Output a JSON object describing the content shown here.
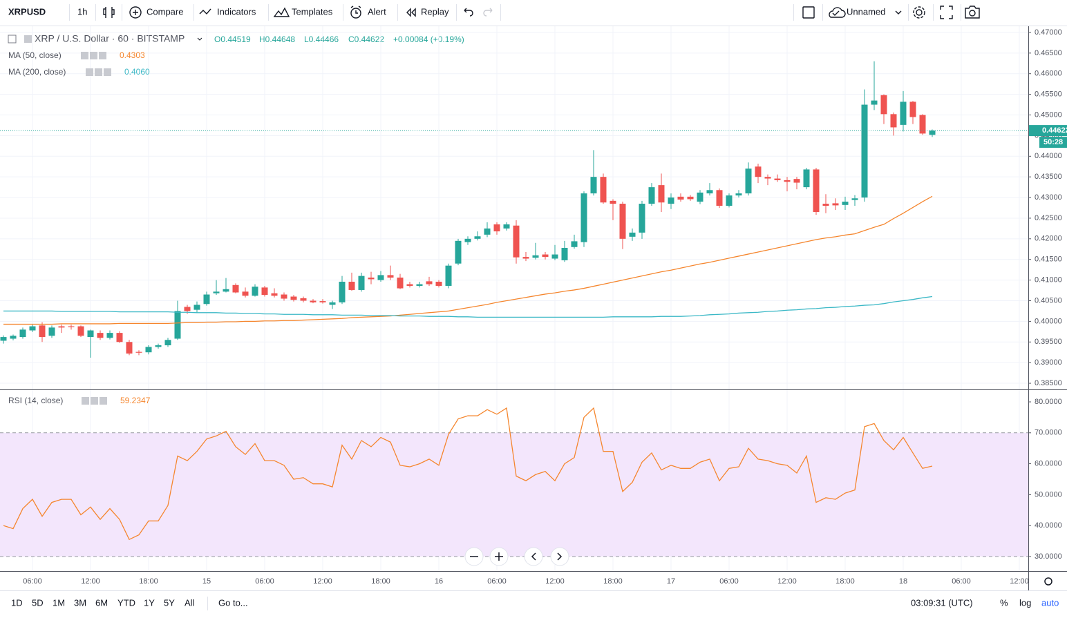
{
  "toolbar": {
    "symbol": "XRPUSD",
    "interval": "1h",
    "buttons": [
      "Compare",
      "Indicators",
      "Templates",
      "Alert",
      "Replay"
    ],
    "layout": "Unnamed"
  },
  "header": {
    "title": "XRP / U.S. Dollar · 60 · BITSTAMP",
    "ohlc": [
      "O0.44519",
      "H0.44648",
      "L0.44466",
      "C0.44622"
    ],
    "change": "+0.00084 (+0.19%)"
  },
  "chart_data": [
    {
      "type": "candlestick",
      "up_color": "#26a69a",
      "down_color": "#ef5350",
      "candles": [
        [
          0.3953,
          0.3966,
          0.3946,
          0.3962
        ],
        [
          0.3958,
          0.3968,
          0.3954,
          0.3965
        ],
        [
          0.3962,
          0.3985,
          0.3958,
          0.398
        ],
        [
          0.3978,
          0.3992,
          0.3974,
          0.3988
        ],
        [
          0.399,
          0.3998,
          0.395,
          0.3962
        ],
        [
          0.3965,
          0.399,
          0.396,
          0.3985
        ],
        [
          0.3988,
          0.3992,
          0.3972,
          0.3985
        ],
        [
          0.3988,
          0.3992,
          0.398,
          0.3986
        ],
        [
          0.3988,
          0.399,
          0.3962,
          0.3965
        ],
        [
          0.3962,
          0.398,
          0.3912,
          0.3978
        ],
        [
          0.3972,
          0.3978,
          0.3955,
          0.396
        ],
        [
          0.396,
          0.3978,
          0.3956,
          0.3972
        ],
        [
          0.3972,
          0.3976,
          0.3948,
          0.395
        ],
        [
          0.395,
          0.3955,
          0.3918,
          0.3922
        ],
        [
          0.3926,
          0.393,
          0.3918,
          0.3924
        ],
        [
          0.3925,
          0.3942,
          0.392,
          0.3938
        ],
        [
          0.3938,
          0.3946,
          0.3934,
          0.3942
        ],
        [
          0.3942,
          0.396,
          0.3938,
          0.3955
        ],
        [
          0.3958,
          0.405,
          0.3955,
          0.4025
        ],
        [
          0.4035,
          0.404,
          0.4018,
          0.4025
        ],
        [
          0.4028,
          0.4048,
          0.402,
          0.404
        ],
        [
          0.4042,
          0.4072,
          0.4038,
          0.4065
        ],
        [
          0.4068,
          0.41,
          0.4064,
          0.4072
        ],
        [
          0.4072,
          0.4105,
          0.407,
          0.4078
        ],
        [
          0.4088,
          0.4092,
          0.4068,
          0.407
        ],
        [
          0.4072,
          0.4082,
          0.4058,
          0.4062
        ],
        [
          0.4062,
          0.409,
          0.406,
          0.4084
        ],
        [
          0.4082,
          0.4086,
          0.406,
          0.4064
        ],
        [
          0.4068,
          0.408,
          0.4058,
          0.4062
        ],
        [
          0.4065,
          0.407,
          0.405,
          0.4055
        ],
        [
          0.406,
          0.4064,
          0.4048,
          0.4052
        ],
        [
          0.4056,
          0.406,
          0.4046,
          0.405
        ],
        [
          0.405,
          0.4054,
          0.4044,
          0.4046
        ],
        [
          0.4049,
          0.4054,
          0.4043,
          0.4046
        ],
        [
          0.404,
          0.405,
          0.403,
          0.4046
        ],
        [
          0.4046,
          0.411,
          0.4042,
          0.4096
        ],
        [
          0.4096,
          0.4118,
          0.4074,
          0.4076
        ],
        [
          0.4076,
          0.4118,
          0.4072,
          0.411
        ],
        [
          0.4106,
          0.412,
          0.409,
          0.4102
        ],
        [
          0.41,
          0.4122,
          0.4096,
          0.4112
        ],
        [
          0.4112,
          0.4135,
          0.41,
          0.4106
        ],
        [
          0.4106,
          0.4115,
          0.4078,
          0.408
        ],
        [
          0.409,
          0.4096,
          0.4082,
          0.4086
        ],
        [
          0.4086,
          0.4096,
          0.4082,
          0.409
        ],
        [
          0.4097,
          0.4108,
          0.4086,
          0.409
        ],
        [
          0.4096,
          0.41,
          0.4082,
          0.4086
        ],
        [
          0.4086,
          0.414,
          0.408,
          0.4135
        ],
        [
          0.414,
          0.42,
          0.4136,
          0.4195
        ],
        [
          0.4192,
          0.4206,
          0.4185,
          0.42
        ],
        [
          0.42,
          0.4218,
          0.4196,
          0.4206
        ],
        [
          0.421,
          0.424,
          0.4204,
          0.4225
        ],
        [
          0.4235,
          0.424,
          0.421,
          0.4218
        ],
        [
          0.4225,
          0.424,
          0.422,
          0.4235
        ],
        [
          0.4232,
          0.4245,
          0.414,
          0.4155
        ],
        [
          0.4156,
          0.4168,
          0.4146,
          0.4152
        ],
        [
          0.4154,
          0.419,
          0.415,
          0.416
        ],
        [
          0.4162,
          0.4168,
          0.415,
          0.4156
        ],
        [
          0.4152,
          0.4185,
          0.4148,
          0.4162
        ],
        [
          0.4148,
          0.4195,
          0.4144,
          0.4178
        ],
        [
          0.418,
          0.421,
          0.4176,
          0.4194
        ],
        [
          0.4192,
          0.4315,
          0.418,
          0.431
        ],
        [
          0.431,
          0.4415,
          0.4305,
          0.435
        ],
        [
          0.435,
          0.4358,
          0.4285,
          0.4288
        ],
        [
          0.4292,
          0.4296,
          0.4245,
          0.4285
        ],
        [
          0.4285,
          0.429,
          0.4175,
          0.42
        ],
        [
          0.4205,
          0.4225,
          0.4195,
          0.4215
        ],
        [
          0.4215,
          0.4292,
          0.42,
          0.4285
        ],
        [
          0.4285,
          0.4335,
          0.428,
          0.4325
        ],
        [
          0.433,
          0.4358,
          0.4265,
          0.4288
        ],
        [
          0.4285,
          0.431,
          0.4272,
          0.43
        ],
        [
          0.4302,
          0.431,
          0.429,
          0.4295
        ],
        [
          0.4302,
          0.4306,
          0.4292,
          0.4296
        ],
        [
          0.429,
          0.4318,
          0.4284,
          0.4312
        ],
        [
          0.431,
          0.4335,
          0.4305,
          0.4318
        ],
        [
          0.4318,
          0.4322,
          0.4275,
          0.428
        ],
        [
          0.428,
          0.431,
          0.4276,
          0.4305
        ],
        [
          0.4305,
          0.4318,
          0.43,
          0.431
        ],
        [
          0.431,
          0.4385,
          0.4305,
          0.437
        ],
        [
          0.4375,
          0.4382,
          0.4335,
          0.435
        ],
        [
          0.435,
          0.4356,
          0.433,
          0.4346
        ],
        [
          0.4346,
          0.4356,
          0.4338,
          0.4342
        ],
        [
          0.4342,
          0.435,
          0.4315,
          0.4338
        ],
        [
          0.4345,
          0.435,
          0.432,
          0.4336
        ],
        [
          0.4325,
          0.4372,
          0.432,
          0.4368
        ],
        [
          0.4368,
          0.4372,
          0.4258,
          0.4265
        ],
        [
          0.4285,
          0.4308,
          0.4262,
          0.428
        ],
        [
          0.4286,
          0.4298,
          0.427,
          0.4281
        ],
        [
          0.4282,
          0.4302,
          0.427,
          0.429
        ],
        [
          0.4294,
          0.4306,
          0.428,
          0.4298
        ],
        [
          0.43,
          0.4562,
          0.429,
          0.4525
        ],
        [
          0.4525,
          0.463,
          0.4512,
          0.4535
        ],
        [
          0.4548,
          0.455,
          0.4478,
          0.4502
        ],
        [
          0.4502,
          0.4506,
          0.445,
          0.447
        ],
        [
          0.4476,
          0.4558,
          0.446,
          0.4532
        ],
        [
          0.4532,
          0.4534,
          0.4478,
          0.4495
        ],
        [
          0.45,
          0.4502,
          0.4452,
          0.4455
        ],
        [
          0.44519,
          0.44648,
          0.44466,
          0.44622
        ]
      ],
      "series": [
        {
          "name": "MA (50, close)",
          "color": "#f5862e",
          "last_label": "0.4303",
          "values": [
            0.3993,
            0.3993,
            0.3993,
            0.3993,
            0.3993,
            0.3993,
            0.3994,
            0.3994,
            0.3994,
            0.3994,
            0.3994,
            0.3994,
            0.3995,
            0.3995,
            0.3995,
            0.3995,
            0.3995,
            0.3995,
            0.3996,
            0.3997,
            0.3997,
            0.3998,
            0.3998,
            0.3999,
            0.3999,
            0.4,
            0.4,
            0.4001,
            0.4001,
            0.4002,
            0.4002,
            0.4003,
            0.4004,
            0.4005,
            0.4006,
            0.4007,
            0.4009,
            0.401,
            0.4011,
            0.4012,
            0.4013,
            0.4015,
            0.4017,
            0.4019,
            0.4021,
            0.4023,
            0.4025,
            0.4029,
            0.4033,
            0.4037,
            0.4041,
            0.4046,
            0.405,
            0.4054,
            0.4058,
            0.4062,
            0.4066,
            0.4069,
            0.4073,
            0.4076,
            0.408,
            0.4085,
            0.409,
            0.4095,
            0.41,
            0.4105,
            0.411,
            0.4115,
            0.412,
            0.4124,
            0.4129,
            0.4134,
            0.4139,
            0.4143,
            0.4148,
            0.4153,
            0.4158,
            0.4163,
            0.4168,
            0.4173,
            0.4178,
            0.4183,
            0.4188,
            0.4193,
            0.4198,
            0.4202,
            0.4205,
            0.4209,
            0.4212,
            0.422,
            0.4228,
            0.4235,
            0.4249,
            0.4262,
            0.4276,
            0.429,
            0.4303
          ]
        },
        {
          "name": "MA (200, close)",
          "color": "#3bb8c6",
          "last_label": "0.4060",
          "values": [
            0.4025,
            0.4025,
            0.4025,
            0.4025,
            0.4025,
            0.4025,
            0.4024,
            0.4024,
            0.4024,
            0.4024,
            0.4024,
            0.4024,
            0.4023,
            0.4023,
            0.4023,
            0.4023,
            0.4023,
            0.4023,
            0.4022,
            0.4022,
            0.4021,
            0.4021,
            0.4021,
            0.402,
            0.402,
            0.4019,
            0.4019,
            0.4018,
            0.4018,
            0.4017,
            0.4017,
            0.4017,
            0.4016,
            0.4016,
            0.4016,
            0.4015,
            0.4015,
            0.4015,
            0.4014,
            0.4014,
            0.4014,
            0.4013,
            0.4013,
            0.4013,
            0.4012,
            0.4012,
            0.4012,
            0.4011,
            0.4011,
            0.401,
            0.401,
            0.401,
            0.401,
            0.401,
            0.401,
            0.401,
            0.401,
            0.401,
            0.401,
            0.401,
            0.401,
            0.401,
            0.401,
            0.4011,
            0.4011,
            0.4011,
            0.4011,
            0.4011,
            0.4012,
            0.4012,
            0.4012,
            0.4013,
            0.4014,
            0.4016,
            0.4017,
            0.4018,
            0.402,
            0.4021,
            0.4022,
            0.4024,
            0.4025,
            0.4027,
            0.4028,
            0.403,
            0.4031,
            0.4033,
            0.4034,
            0.4036,
            0.4037,
            0.4039,
            0.404,
            0.4043,
            0.4047,
            0.405,
            0.4053,
            0.4057,
            0.406
          ]
        }
      ],
      "ylim": [
        0.3835,
        0.4715
      ],
      "yticks": [
        {
          "value": 0.385,
          "label": "0.38500"
        },
        {
          "value": 0.39,
          "label": "0.39000"
        },
        {
          "value": 0.395,
          "label": "0.39500"
        },
        {
          "value": 0.4,
          "label": "0.40000"
        },
        {
          "value": 0.405,
          "label": "0.40500"
        },
        {
          "value": 0.41,
          "label": "0.41000"
        },
        {
          "value": 0.415,
          "label": "0.41500"
        },
        {
          "value": 0.42,
          "label": "0.42000"
        },
        {
          "value": 0.425,
          "label": "0.42500"
        },
        {
          "value": 0.43,
          "label": "0.43000"
        },
        {
          "value": 0.435,
          "label": "0.43500"
        },
        {
          "value": 0.44,
          "label": "0.44000"
        },
        {
          "value": 0.445,
          "label": "0.44500"
        },
        {
          "value": 0.45,
          "label": "0.45000"
        },
        {
          "value": 0.455,
          "label": "0.45500"
        },
        {
          "value": 0.46,
          "label": "0.46000"
        },
        {
          "value": 0.465,
          "label": "0.46500"
        },
        {
          "value": 0.47,
          "label": "0.47000"
        }
      ],
      "xtick_labels": [
        "06:00",
        "12:00",
        "18:00",
        "15",
        "06:00",
        "12:00",
        "18:00",
        "16",
        "06:00",
        "12:00",
        "18:00",
        "17",
        "06:00",
        "12:00",
        "18:00",
        "18",
        "06:00",
        "12:00"
      ],
      "price_label": "0.44622",
      "countdown": "50:28"
    },
    {
      "type": "line",
      "series": [
        {
          "name": "RSI (14, close)",
          "color": "#f5862e",
          "last_label": "59.2347",
          "values": [
            40,
            39,
            45.5,
            48.5,
            43,
            47.5,
            48.5,
            48.5,
            43.5,
            46,
            42,
            45.5,
            42,
            35.5,
            37,
            41.5,
            41.5,
            46.5,
            62.5,
            61,
            64,
            68,
            69,
            70.5,
            65.5,
            63,
            66.5,
            61,
            61,
            59.5,
            55,
            55.5,
            53.5,
            53.5,
            52.5,
            66,
            61.5,
            67.5,
            65.5,
            68.5,
            67,
            59.5,
            59,
            60,
            61.5,
            59.5,
            69.5,
            74.5,
            75.5,
            75.5,
            77.5,
            76,
            78,
            56,
            54.5,
            56.5,
            57.5,
            54.5,
            60,
            62,
            75,
            78,
            64,
            64,
            51,
            54,
            60.5,
            63.5,
            58,
            59.5,
            58.5,
            58.5,
            60.5,
            61.5,
            54.5,
            58.5,
            59,
            65,
            61.5,
            61,
            60,
            59.5,
            57,
            62.5,
            47.5,
            49,
            48.5,
            50.5,
            51.5,
            72,
            73,
            67.5,
            64.5,
            68.5,
            63.5,
            58.5,
            59.2347
          ]
        }
      ],
      "ylim": [
        25.3,
        83.8
      ],
      "band": [
        30,
        70
      ],
      "band_color": "#f3e6fc",
      "yticks": [
        {
          "value": 30,
          "label": "30.0000"
        },
        {
          "value": 40,
          "label": "40.0000"
        },
        {
          "value": 50,
          "label": "50.0000"
        },
        {
          "value": 60,
          "label": "60.0000"
        },
        {
          "value": 70,
          "label": "70.0000"
        },
        {
          "value": 80,
          "label": "80.0000"
        }
      ]
    }
  ],
  "bottom_bar": {
    "ranges": [
      "1D",
      "5D",
      "1M",
      "3M",
      "6M",
      "YTD",
      "1Y",
      "5Y",
      "All"
    ],
    "goto": "Go to...",
    "clock": "03:09:31 (UTC)",
    "options": [
      "%",
      "log",
      "auto"
    ]
  }
}
